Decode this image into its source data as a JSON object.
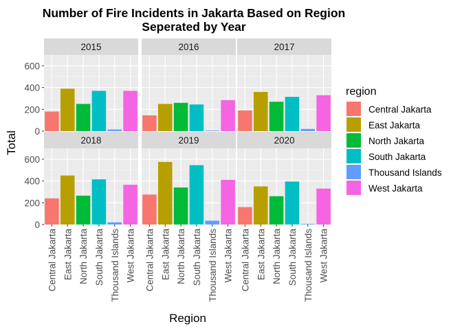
{
  "chart_data": {
    "type": "bar",
    "title": "Number of Fire Incidents in Jakarta Based on Region",
    "subtitle": "Seperated by Year",
    "xlabel": "Region",
    "ylabel": "Total",
    "ylim": [
      0,
      700
    ],
    "yticks": [
      0,
      200,
      400,
      600
    ],
    "grid": true,
    "legend_position": "right",
    "legend_title": "region",
    "categories": [
      "Central Jakarta",
      "East Jakarta",
      "North Jakarta",
      "South Jakarta",
      "Thousand Islands",
      "West Jakarta"
    ],
    "colors": {
      "Central Jakarta": "#F8766D",
      "East Jakarta": "#B79F00",
      "North Jakarta": "#00BA38",
      "South Jakarta": "#00BFC4",
      "Thousand Islands": "#619CFF",
      "West Jakarta": "#F564E3"
    },
    "facets": [
      {
        "year": "2015",
        "values": [
          180,
          390,
          250,
          370,
          15,
          370
        ]
      },
      {
        "year": "2016",
        "values": [
          145,
          250,
          260,
          245,
          5,
          285
        ]
      },
      {
        "year": "2017",
        "values": [
          190,
          360,
          270,
          315,
          20,
          330
        ]
      },
      {
        "year": "2018",
        "values": [
          240,
          450,
          265,
          415,
          20,
          365
        ]
      },
      {
        "year": "2019",
        "values": [
          275,
          575,
          340,
          545,
          35,
          410
        ]
      },
      {
        "year": "2020",
        "values": [
          160,
          350,
          260,
          395,
          5,
          330
        ]
      }
    ]
  }
}
